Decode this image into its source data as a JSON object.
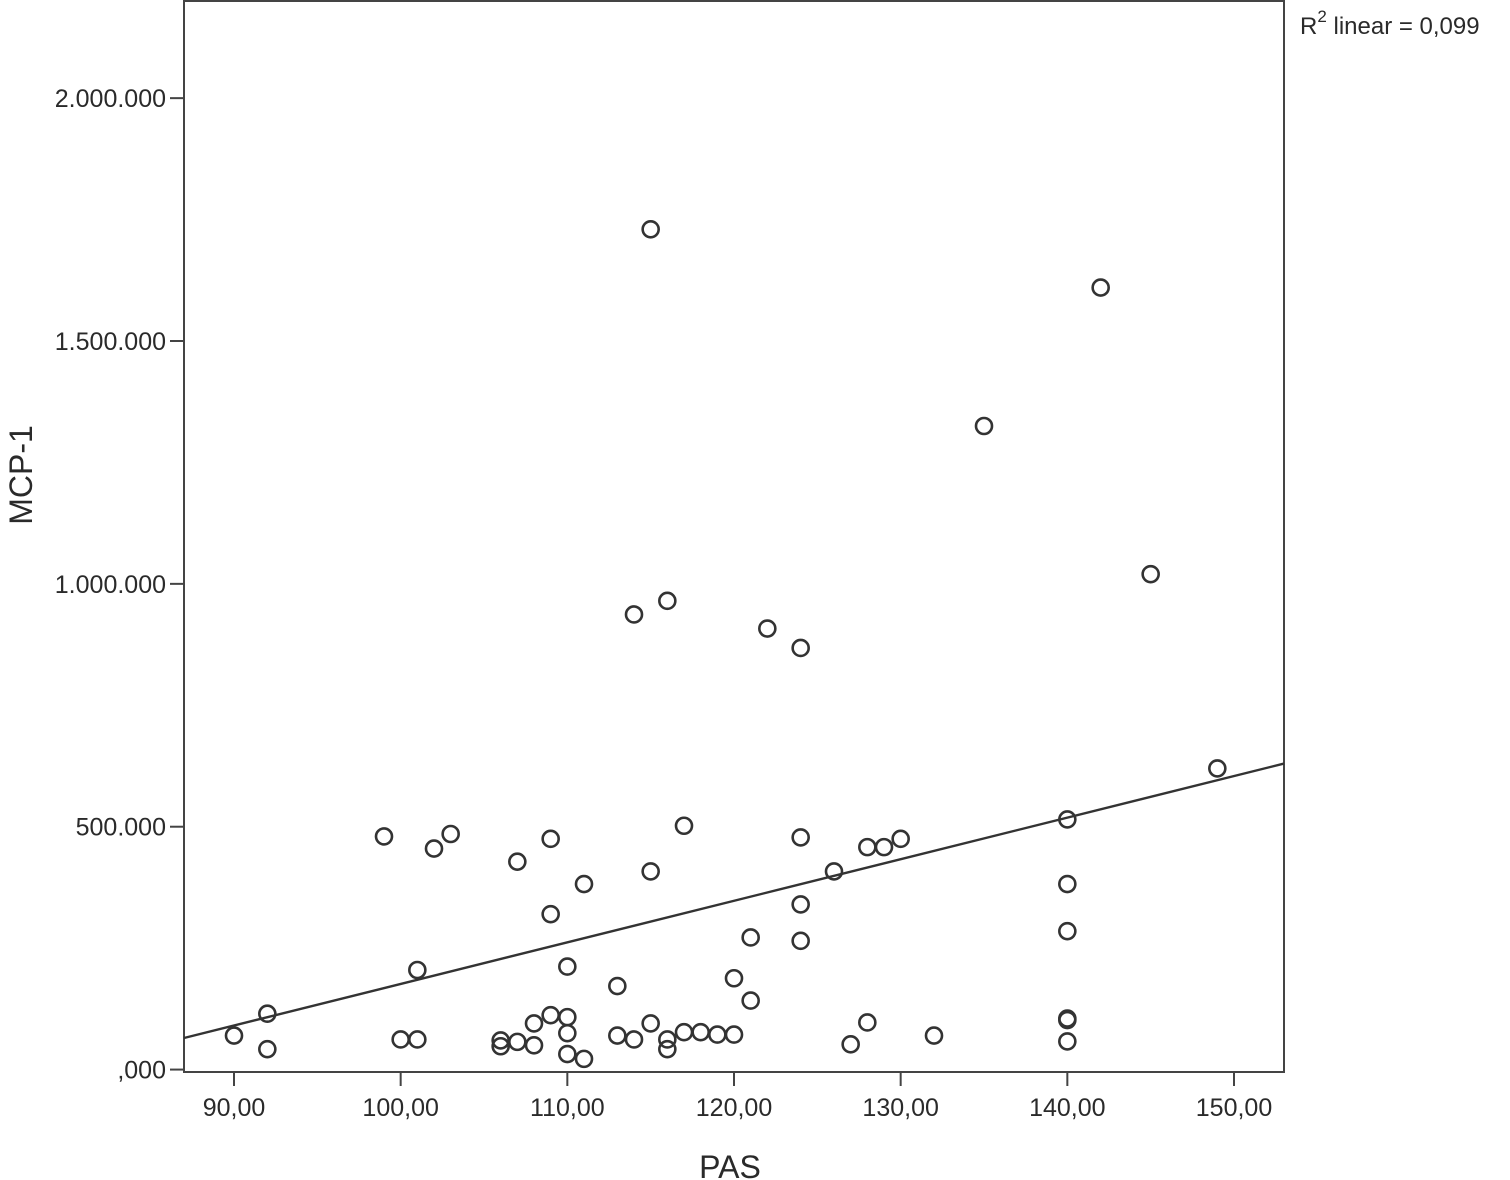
{
  "chart_data": {
    "type": "scatter",
    "title": "",
    "xlabel": "PAS",
    "ylabel": "MCP-1",
    "xlim": [
      87,
      153
    ],
    "ylim": [
      -5000,
      2200000
    ],
    "x_ticks": [
      90,
      100,
      110,
      120,
      130,
      140,
      150
    ],
    "x_tick_labels": [
      "90,00",
      "100,00",
      "110,00",
      "120,00",
      "130,00",
      "140,00",
      "150,00"
    ],
    "y_ticks": [
      0,
      500000,
      1000000,
      1500000,
      2000000
    ],
    "y_tick_labels": [
      ",000",
      "500.000",
      "1.000.000",
      "1.500.000",
      "2.000.000"
    ],
    "grid": false,
    "r2_label": {
      "prefix": "R",
      "sup": "2",
      "suffix": " linear = 0,099"
    },
    "fit_line": {
      "x": [
        87,
        153
      ],
      "y": [
        65000,
        630000
      ]
    },
    "points": [
      [
        90,
        70000
      ],
      [
        92,
        115000
      ],
      [
        92,
        42000
      ],
      [
        99,
        480000
      ],
      [
        100,
        62000
      ],
      [
        101,
        205000
      ],
      [
        101,
        62000
      ],
      [
        102,
        455000
      ],
      [
        103,
        485000
      ],
      [
        106,
        60000
      ],
      [
        106,
        48000
      ],
      [
        107,
        428000
      ],
      [
        107,
        57000
      ],
      [
        108,
        95000
      ],
      [
        108,
        50000
      ],
      [
        109,
        475000
      ],
      [
        109,
        320000
      ],
      [
        109,
        112000
      ],
      [
        110,
        212000
      ],
      [
        110,
        108000
      ],
      [
        110,
        75000
      ],
      [
        110,
        32000
      ],
      [
        111,
        382000
      ],
      [
        111,
        22000
      ],
      [
        113,
        172000
      ],
      [
        113,
        70000
      ],
      [
        114,
        937000
      ],
      [
        114,
        62000
      ],
      [
        115,
        1730000
      ],
      [
        115,
        408000
      ],
      [
        115,
        95000
      ],
      [
        116,
        965000
      ],
      [
        116,
        62000
      ],
      [
        116,
        42000
      ],
      [
        117,
        502000
      ],
      [
        117,
        77000
      ],
      [
        118,
        77000
      ],
      [
        119,
        72000
      ],
      [
        120,
        188000
      ],
      [
        120,
        72000
      ],
      [
        121,
        272000
      ],
      [
        121,
        142000
      ],
      [
        122,
        908000
      ],
      [
        124,
        868000
      ],
      [
        124,
        478000
      ],
      [
        124,
        340000
      ],
      [
        124,
        265000
      ],
      [
        126,
        408000
      ],
      [
        127,
        52000
      ],
      [
        128,
        458000
      ],
      [
        128,
        97000
      ],
      [
        129,
        458000
      ],
      [
        130,
        475000
      ],
      [
        132,
        70000
      ],
      [
        135,
        1325000
      ],
      [
        140,
        515000
      ],
      [
        140,
        382000
      ],
      [
        140,
        285000
      ],
      [
        140,
        105000
      ],
      [
        140,
        102000
      ],
      [
        140,
        58000
      ],
      [
        142,
        1610000
      ],
      [
        145,
        1020000
      ],
      [
        149,
        620000
      ]
    ]
  }
}
